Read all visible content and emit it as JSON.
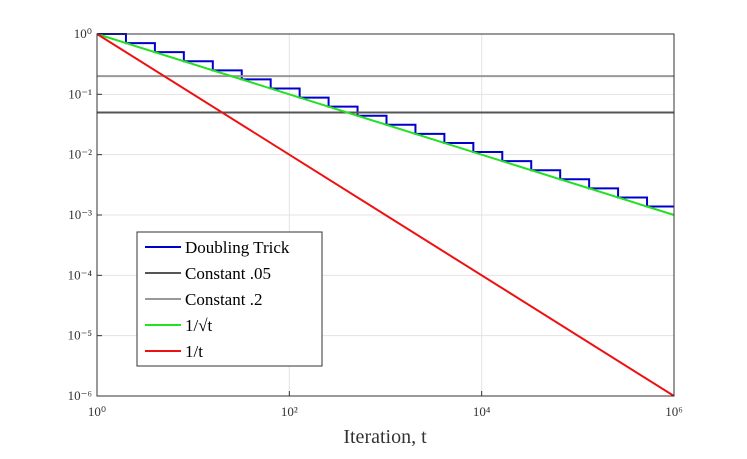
{
  "chart_data": {
    "type": "line",
    "xlabel": "Iteration, t",
    "xscale": "log",
    "yscale": "log",
    "grid": true,
    "legend": "lower left",
    "xlim": [
      1,
      1000000
    ],
    "ylim": [
      1e-06,
      1
    ],
    "xticks": [
      {
        "value": 1,
        "label": "10⁰"
      },
      {
        "value": 100,
        "label": "10²"
      },
      {
        "value": 10000,
        "label": "10⁴"
      },
      {
        "value": 1000000,
        "label": "10⁶"
      }
    ],
    "yticks": [
      {
        "value": 1e-06,
        "label": "10⁻⁶"
      },
      {
        "value": 1e-05,
        "label": "10⁻⁵"
      },
      {
        "value": 0.0001,
        "label": "10⁻⁴"
      },
      {
        "value": 0.001,
        "label": "10⁻³"
      },
      {
        "value": 0.01,
        "label": "10⁻²"
      },
      {
        "value": 0.1,
        "label": "10⁻¹"
      },
      {
        "value": 1,
        "label": "10⁰"
      }
    ],
    "series": [
      {
        "name": "Doubling Trick",
        "color": "#0000cc",
        "x": [
          1,
          2,
          2,
          4,
          4,
          8,
          8,
          16,
          16,
          32,
          32,
          64,
          64,
          128,
          128,
          256,
          256,
          512,
          512,
          1024,
          1024,
          2048,
          2048,
          4096,
          4096,
          8192,
          8192,
          16384,
          16384,
          32768,
          32768,
          65536,
          65536,
          131072,
          131072,
          262144,
          262144,
          524288,
          524288,
          1000000
        ],
        "values": [
          1,
          1,
          0.7071,
          0.7071,
          0.5,
          0.5,
          0.3536,
          0.3536,
          0.25,
          0.25,
          0.1768,
          0.1768,
          0.125,
          0.125,
          0.08839,
          0.08839,
          0.0625,
          0.0625,
          0.04419,
          0.04419,
          0.03125,
          0.03125,
          0.0221,
          0.0221,
          0.01563,
          0.01563,
          0.01105,
          0.01105,
          0.007813,
          0.007813,
          0.005524,
          0.005524,
          0.003906,
          0.003906,
          0.002762,
          0.002762,
          0.001953,
          0.001953,
          0.001381,
          0.001381
        ]
      },
      {
        "name": "Constant .05",
        "color": "#555555",
        "x": [
          1,
          1000000
        ],
        "values": [
          0.05,
          0.05
        ]
      },
      {
        "name": "Constant .2",
        "color": "#999999",
        "x": [
          1,
          1000000
        ],
        "values": [
          0.2,
          0.2
        ]
      },
      {
        "name": "1/√t",
        "color": "#22e022",
        "x": [
          1,
          1000000
        ],
        "values": [
          1,
          0.001
        ]
      },
      {
        "name": "1/t",
        "color": "#ee1111",
        "x": [
          1,
          1000000
        ],
        "values": [
          1,
          1e-06
        ]
      }
    ]
  }
}
